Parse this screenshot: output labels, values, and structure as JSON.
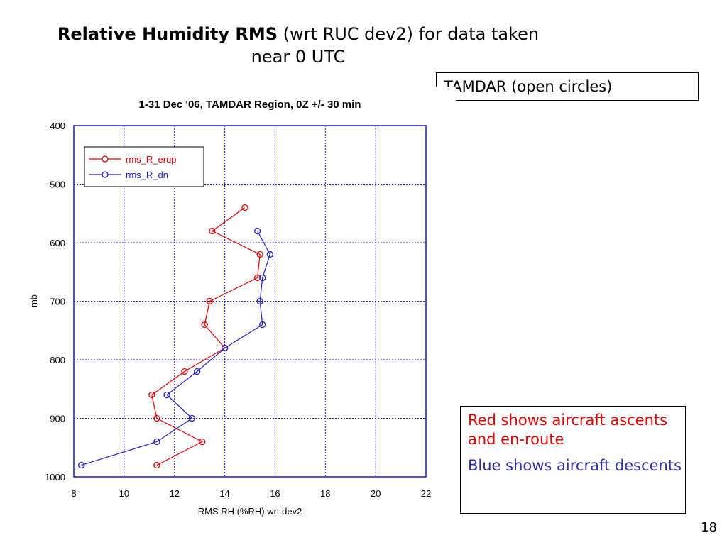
{
  "slide": {
    "title_bold": "Relative Humidity RMS",
    "title_rest": " (wrt RUC dev2) for data taken near 0 UTC",
    "tamdar_note": "TAMDAR (open circles)",
    "red_note": "Red shows aircraft ascents and en-route",
    "blue_note": "Blue shows aircraft descents",
    "page_number": "18"
  },
  "colors": {
    "red": "#e00000",
    "blue": "#2020c8",
    "grid": "#1a1acc"
  },
  "chart_data": {
    "type": "line",
    "title": "1-31 Dec '06, TAMDAR Region, 0Z +/- 30 min",
    "xlabel": "RMS RH (%RH) wrt dev2",
    "ylabel": "mb",
    "xlim": [
      8,
      22
    ],
    "ylim": [
      1000,
      400
    ],
    "xticks": [
      8,
      10,
      12,
      14,
      16,
      18,
      20,
      22
    ],
    "yticks": [
      400,
      500,
      600,
      700,
      800,
      900,
      1000
    ],
    "y_inverted": true,
    "grid": true,
    "legend_position": "top-left",
    "series": [
      {
        "name": "rms_R_erup",
        "color": "#e00000",
        "marker": "open-circle",
        "points": [
          [
            14.8,
            540
          ],
          [
            13.5,
            580
          ],
          [
            15.4,
            620
          ],
          [
            15.3,
            660
          ],
          [
            13.4,
            700
          ],
          [
            13.2,
            740
          ],
          [
            14.0,
            780
          ],
          [
            12.4,
            820
          ],
          [
            11.1,
            860
          ],
          [
            11.3,
            900
          ],
          [
            13.1,
            940
          ],
          [
            11.3,
            980
          ]
        ]
      },
      {
        "name": "rms_R_dn",
        "color": "#2020c8",
        "marker": "open-circle",
        "points": [
          [
            15.3,
            580
          ],
          [
            15.8,
            620
          ],
          [
            15.5,
            660
          ],
          [
            15.4,
            700
          ],
          [
            15.5,
            740
          ],
          [
            14.0,
            780
          ],
          [
            12.9,
            820
          ],
          [
            11.7,
            860
          ],
          [
            12.7,
            900
          ],
          [
            11.3,
            940
          ],
          [
            8.3,
            980
          ]
        ]
      }
    ]
  }
}
